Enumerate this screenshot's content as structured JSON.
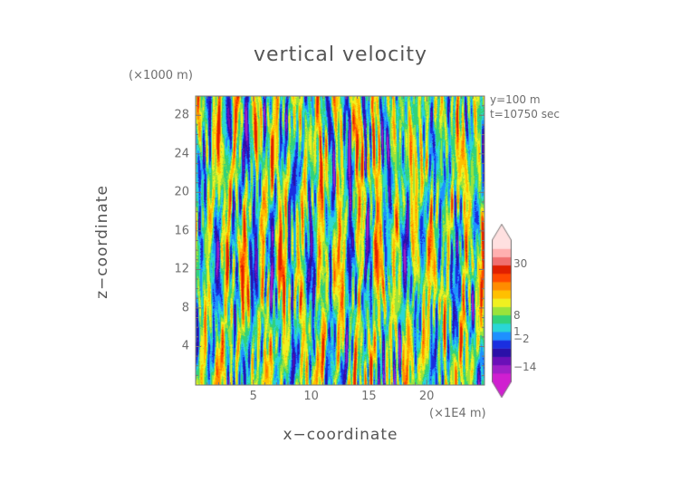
{
  "chart_data": {
    "type": "heatmap",
    "title": "vertical velocity",
    "xlabel": "x−coordinate",
    "ylabel": "z−coordinate",
    "x_unit": "(×1E4 m)",
    "y_unit": "(×1000 m)",
    "xlim": [
      0,
      25
    ],
    "ylim": [
      0,
      30
    ],
    "x_ticks": [
      "5",
      "10",
      "15",
      "20"
    ],
    "y_ticks": [
      "4",
      "8",
      "12",
      "16",
      "20",
      "24",
      "28"
    ],
    "annotations": [
      "y=100  m",
      "t=10750 sec"
    ],
    "colorbar": {
      "labels": [
        "30",
        "8",
        "1",
        "−2",
        "−14"
      ],
      "range": [
        -20,
        40
      ],
      "colors": [
        "#d01fd0",
        "#a020c8",
        "#6a10b8",
        "#2a10a8",
        "#1a2fe0",
        "#1e90ff",
        "#2ad6d6",
        "#32d27a",
        "#9be33a",
        "#f0f020",
        "#ffc000",
        "#ff8c00",
        "#ff4a00",
        "#e02000",
        "#f07070",
        "#ffb0b0",
        "#ffe0e0"
      ]
    },
    "field_description": "turbulent vertical velocity field with vertical streaks",
    "grid": false
  }
}
